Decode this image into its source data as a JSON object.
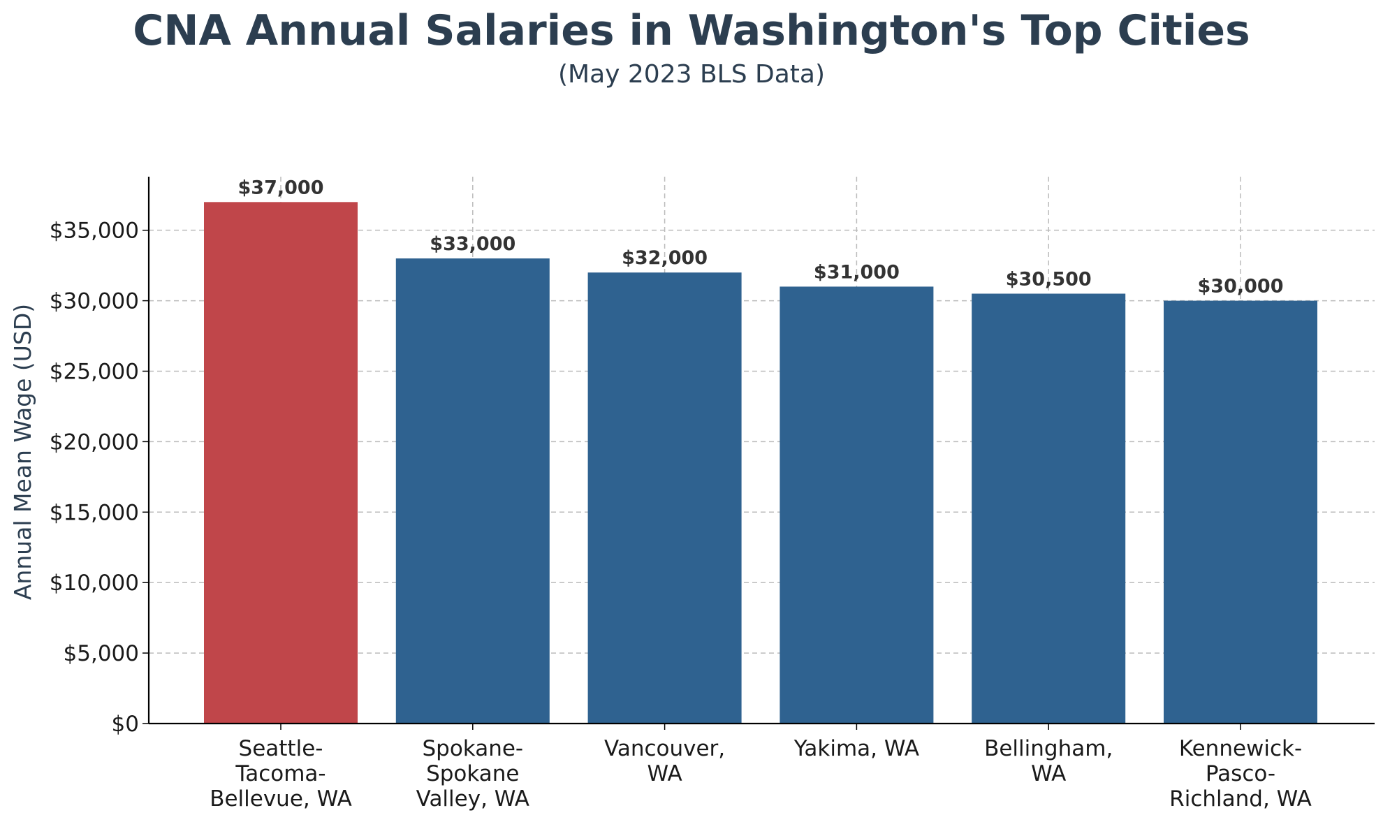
{
  "chart_data": {
    "type": "bar",
    "title": "CNA Annual Salaries in Washington's Top Cities",
    "subtitle": "(May 2023 BLS Data)",
    "xlabel": "",
    "ylabel": "Annual Mean Wage (USD)",
    "ylim": [
      0,
      38800
    ],
    "yticks": [
      0,
      5000,
      10000,
      15000,
      20000,
      25000,
      30000,
      35000
    ],
    "ytick_labels": [
      "$0",
      "$5,000",
      "$10,000",
      "$15,000",
      "$20,000",
      "$25,000",
      "$30,000",
      "$35,000"
    ],
    "grid": true,
    "categories": [
      [
        "Seattle-",
        "Tacoma-",
        "Bellevue, WA"
      ],
      [
        "Spokane-",
        "Spokane",
        "Valley, WA"
      ],
      [
        "Vancouver,",
        "WA"
      ],
      [
        "Yakima, WA"
      ],
      [
        "Bellingham,",
        "WA"
      ],
      [
        "Kennewick-",
        "Pasco-",
        "Richland, WA"
      ]
    ],
    "values": [
      37000,
      33000,
      32000,
      31000,
      30500,
      30000
    ],
    "value_labels": [
      "$37,000",
      "$33,000",
      "$32,000",
      "$31,000",
      "$30,500",
      "$30,000"
    ],
    "colors": [
      "#c0464a",
      "#2f6290",
      "#2f6290",
      "#2f6290",
      "#2f6290",
      "#2f6290"
    ],
    "title_color": "#2c3e50",
    "grid_color": "#bbbbbb",
    "axis_color": "#000000"
  }
}
